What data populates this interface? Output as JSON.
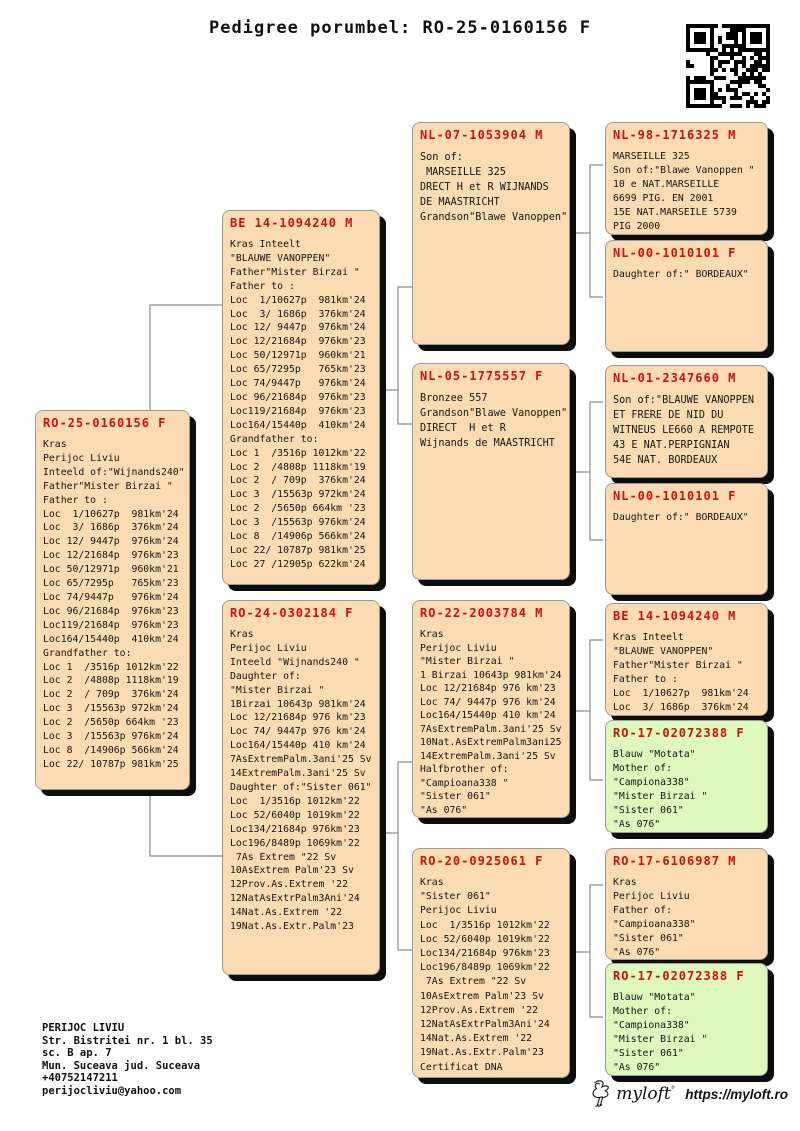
{
  "title": "Pedigree porumbel: RO-25-0160156 F",
  "colors": {
    "box_fill": "#fbdcb2",
    "green_box_fill": "#def7bd",
    "ring_header_red": "#cc1111",
    "shadow": "#0d0d0d",
    "connector_gray": "#8a8a8a"
  },
  "boxes": [
    {
      "header": "RO-25-0160156 F",
      "variant": "peach",
      "lines": [
        "Kras",
        "Perijoc Liviu",
        "Inteeld of:\"Wijnands240\"",
        "Father\"Mister Birzai \"",
        "Father to :",
        "Loc  1/10627p  981km'24",
        "Loc  3/ 1686p  376km'24",
        "Loc 12/ 9447p  976km'24",
        "Loc 12/21684p  976km'23",
        "Loc 50/12971p  960km'21",
        "Loc 65/7295p   765km'23",
        "Loc 74/9447p   976km'24",
        "Loc 96/21684p  976km'23",
        "Loc119/21684p  976km'23",
        "Loc164/15440p  410km'24",
        "Grandfather to:",
        "Loc 1  /3516p 1012km'22",
        "Loc 2  /4808p 1118km'19",
        "Loc 2  / 709p  376km'24",
        "Loc 3  /15563p 972km'24",
        "Loc 2  /5650p 664km '23",
        "Loc 3  /15563p 976km'24",
        "Loc 8  /14906p 566km'24",
        "Loc 22/ 10787p 981km'25"
      ]
    },
    {
      "header": "BE 14-1094240 M",
      "variant": "peach",
      "lines": [
        "Kras Inteelt",
        "\"BLAUWE VANOPPEN\"",
        "Father\"Mister Birzai \"",
        "Father to :",
        "Loc  1/10627p  981km'24",
        "Loc  3/ 1686p  376km'24",
        "Loc 12/ 9447p  976km'24",
        "Loc 12/21684p  976km'23",
        "Loc 50/12971p  960km'21",
        "Loc 65/7295p   765km'23",
        "Loc 74/9447p   976km'24",
        "Loc 96/21684p  976km'23",
        "Loc119/21684p  976km'23",
        "Loc164/15440p  410km'24",
        "Grandfather to:",
        "Loc 1  /3516p 1012km'22",
        "Loc 2  /4808p 1118km'19",
        "Loc 2  / 709p  376km'24",
        "Loc 3  /15563p 972km'24",
        "Loc 2  /5650p 664km '23",
        "Loc 3  /15563p 976km'24",
        "Loc 8  /14906p 566km'24",
        "Loc 22/ 10787p 981km'25",
        "Loc 27 /12905p 622km'24"
      ]
    },
    {
      "header": "RO-24-0302184 F",
      "variant": "peach",
      "lines": [
        "Kras",
        "Perijoc Liviu",
        "Inteeld \"Wijnands240 \"",
        "Daughter of:",
        "\"Mister Birzai \"",
        "1Birzai 10643p 981km'24",
        "Loc 12/21684p 976 km'23",
        "Loc 74/ 9447p 976 km'24",
        "Loc164/15440p 410 km'24",
        "7AsExtremPalm.3ani'25 Sv",
        "14ExtremPalm.3ani'25 Sv",
        "Daughter of:\"Sister 061\"",
        "Loc  1/3516p 1012km'22",
        "Loc 52/6040p 1019km'22",
        "Loc134/21684p 976km'23",
        "Loc196/8489p 1069km'22",
        " 7As Extrem \"22 Sv",
        "10AsExtrem Palm'23 Sv",
        "12Prov.As.Extrem '22",
        "12NatAsExtrPalm3Ani'24",
        "14Nat.As.Extrem '22",
        "19Nat.As.Extr.Palm'23"
      ]
    },
    {
      "header": "NL-07-1053904 M",
      "variant": "peach",
      "lines": [
        "Son of:",
        " MARSEILLE 325",
        "DRECT H et R WIJNANDS",
        "DE MAASTRICHT",
        "Grandson\"Blawe Vanoppen\""
      ]
    },
    {
      "header": "NL-05-1775557 F",
      "variant": "peach",
      "lines": [
        "Bronzee 557",
        "Grandson\"Blawe Vanoppen\"",
        "DIRECT  H et R",
        "Wijnands de MAASTRICHT"
      ]
    },
    {
      "header": "RO-22-2003784 M",
      "variant": "peach",
      "lines": [
        "Kras",
        "Perijoc Liviu",
        "\"Mister Birzai \"",
        "1 Birzai 10643p 981km'24",
        "Loc 12/21684p 976 km'23",
        "Loc 74/ 9447p 976 km'24",
        "Loc164/15440p 410 km'24",
        "7AsExtremPalm.3ani'25 Sv",
        "10Nat.AsExtremPalm3ani25",
        "14ExtremPalm.3ani'25 Sv",
        "Halfbrother of:",
        "\"Campioana338 \"",
        "\"Sister 061\"",
        "\"As 076\""
      ]
    },
    {
      "header": "RO-20-0925061 F",
      "variant": "peach",
      "lines": [
        "Kras",
        "\"Sister 061\"",
        "Perijoc Liviu",
        "Loc  1/3516p 1012km'22",
        "Loc 52/6040p 1019km'22",
        "Loc134/21684p 976km'23",
        "Loc196/8489p 1069km'22",
        " 7As Extrem \"22 Sv",
        "10AsExtrem Palm'23 Sv",
        "12Prov.As.Extrem '22",
        "12NatAsExtrPalm3Ani'24",
        "14Nat.As.Extrem '22",
        "19Nat.As.Extr.Palm'23",
        "Certificat DNA"
      ]
    },
    {
      "header": "NL-98-1716325 M",
      "variant": "peach",
      "lines": [
        "MARSEILLE 325",
        "Son of:\"Blawe Vanoppen \"",
        "10 e NAT.MARSEILLE",
        "6699 PIG. EN 2001",
        "15E NAT.MARSEILE 5739",
        "PIG 2000"
      ]
    },
    {
      "header": "NL-00-1010101 F",
      "variant": "peach",
      "lines": [
        "Daughter of:\" BORDEAUX\""
      ]
    },
    {
      "header": "NL-01-2347660 M",
      "variant": "peach",
      "lines": [
        "Son of:\"BLAUWE VANOPPEN",
        "ET FRERE DE NID DU",
        "WITNEUS LE660 A REMPOTE",
        "43 E NAT.PERPIGNIAN",
        "54E NAT. BORDEAUX"
      ]
    },
    {
      "header": "NL-00-1010101 F",
      "variant": "peach",
      "lines": [
        "Daughter of:\" BORDEAUX\""
      ]
    },
    {
      "header": "BE 14-1094240 M",
      "variant": "peach",
      "lines": [
        "Kras Inteelt",
        "\"BLAUWE VANOPPEN\"",
        "Father\"Mister Birzai \"",
        "Father to :",
        "Loc  1/10627p  981km'24",
        "Loc  3/ 1686p  376km'24"
      ]
    },
    {
      "header": "RO-17-02072388 F",
      "variant": "green",
      "lines": [
        "Blauw \"Motata\"",
        "Mother of:",
        "\"Campiona338\"",
        "\"Mister Birzai \"",
        "\"Sister 061\"",
        "\"As 076\""
      ]
    },
    {
      "header": "RO-17-6106987 M",
      "variant": "peach",
      "lines": [
        "Kras",
        "Perijoc Liviu",
        "Father of:",
        "\"Campioana338\"",
        "\"Sister 061\"",
        "\"As 076\""
      ]
    },
    {
      "header": "RO-17-02072388 F",
      "variant": "green",
      "lines": [
        "Blauw \"Motata\"",
        "Mother of:",
        "\"Campiona338\"",
        "\"Mister Birzai \"",
        "\"Sister 061\"",
        "\"As 076\""
      ]
    }
  ],
  "owner": {
    "lines": [
      "PERIJOC LIVIU",
      "Str. Bistritei nr. 1 bl. 35",
      "sc. B ap. 7",
      "Mun. Suceava jud. Suceava",
      "+40752147211",
      "perijocliviu@yahoo.com"
    ]
  },
  "brand": {
    "logo_text": "myloft",
    "url": "https://myloft.ro"
  }
}
